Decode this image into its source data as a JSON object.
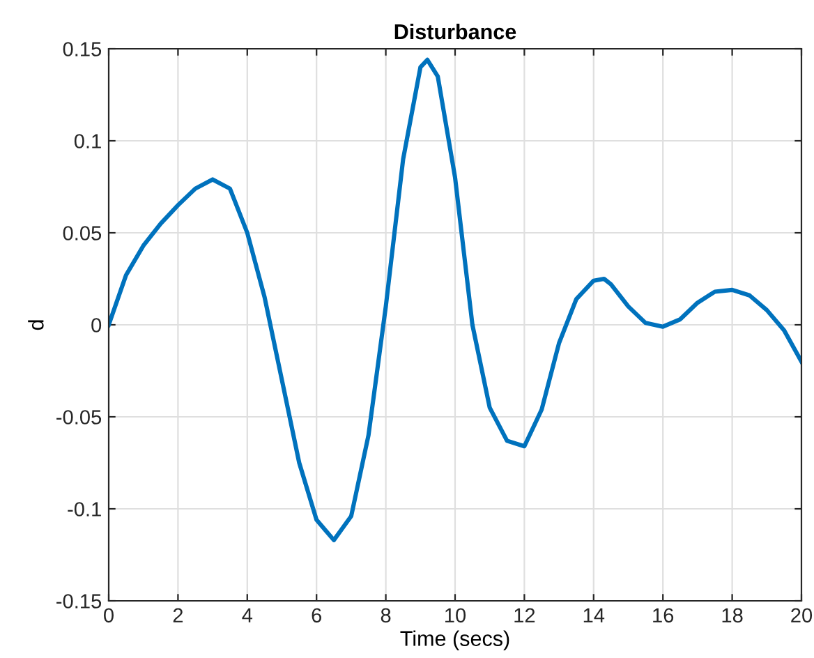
{
  "chart_data": {
    "type": "line",
    "title": "Disturbance",
    "xlabel": "Time (secs)",
    "ylabel": "d",
    "x": [
      0,
      0.5,
      1,
      1.5,
      2,
      2.5,
      3,
      3.5,
      4,
      4.5,
      5,
      5.5,
      6,
      6.5,
      7,
      7.5,
      8,
      8.5,
      9,
      9.2,
      9.5,
      10,
      10.5,
      11,
      11.5,
      12,
      12.5,
      13,
      13.5,
      14,
      14.3,
      14.5,
      15,
      15.5,
      16,
      16.5,
      17,
      17.5,
      18,
      18.5,
      19,
      19.5,
      20
    ],
    "series": [
      {
        "color": "#0072bd",
        "values": [
          0,
          0.027,
          0.043,
          0.055,
          0.065,
          0.074,
          0.079,
          0.074,
          0.05,
          0.015,
          -0.03,
          -0.075,
          -0.106,
          -0.117,
          -0.104,
          -0.06,
          0.01,
          0.09,
          0.14,
          0.144,
          0.135,
          0.08,
          0.0,
          -0.045,
          -0.063,
          -0.066,
          -0.046,
          -0.01,
          0.014,
          0.024,
          0.025,
          0.022,
          0.01,
          0.001,
          -0.001,
          0.003,
          0.012,
          0.018,
          0.019,
          0.016,
          0.008,
          -0.003,
          -0.02
        ]
      }
    ],
    "xlim": [
      0,
      20
    ],
    "xticks": [
      0,
      2,
      4,
      6,
      8,
      10,
      12,
      14,
      16,
      18,
      20
    ],
    "ylim": [
      -0.15,
      0.15
    ],
    "yticks": [
      -0.15,
      -0.1,
      -0.05,
      0,
      0.05,
      0.1,
      0.15
    ],
    "grid": true,
    "legend": false,
    "marker": "none",
    "line_style": "solid"
  }
}
